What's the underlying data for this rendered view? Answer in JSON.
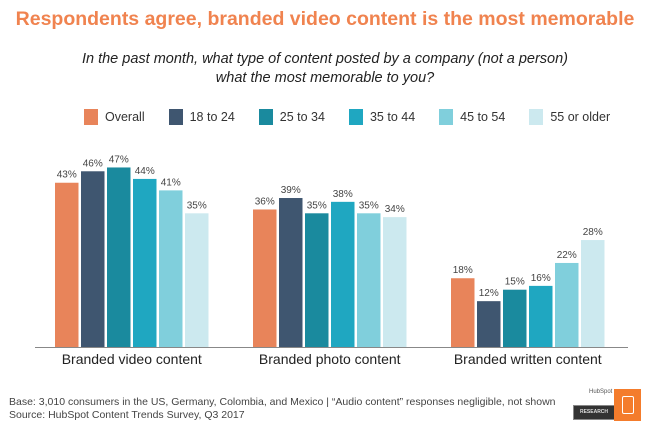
{
  "chart_data": {
    "type": "bar",
    "title": "Respondents agree, branded video content is the most memorable",
    "subtitle_lines": [
      "In the past month, what type of content posted by a company (not a person)",
      "what the most memorable to you?"
    ],
    "categories": [
      "Branded video content",
      "Branded photo content",
      "Branded written content"
    ],
    "series": [
      {
        "name": "Overall",
        "color": "#E8845A",
        "values": [
          43,
          36,
          18
        ]
      },
      {
        "name": "18 to 24",
        "color": "#3F5670",
        "values": [
          46,
          39,
          12
        ]
      },
      {
        "name": "25 to 34",
        "color": "#1A8A9E",
        "values": [
          47,
          35,
          15
        ]
      },
      {
        "name": "35 to 44",
        "color": "#1FA7C1",
        "values": [
          44,
          38,
          16
        ]
      },
      {
        "name": "45 to 54",
        "color": "#80CFDC",
        "values": [
          41,
          35,
          22
        ]
      },
      {
        "name": "55 or older",
        "color": "#CCE9EF",
        "values": [
          35,
          34,
          28
        ]
      }
    ],
    "value_suffix": "%",
    "ylim": [
      0,
      50
    ],
    "legend_position": "top",
    "grid": false
  },
  "footer": {
    "base": "Base: 3,010 consumers in the US, Germany, Colombia, and Mexico | “Audio content” responses negligible, not shown",
    "source": "Source: HubSpot Content Trends Survey, Q3 2017"
  },
  "logo": {
    "brand": "HubSpot",
    "label": "RESEARCH"
  }
}
